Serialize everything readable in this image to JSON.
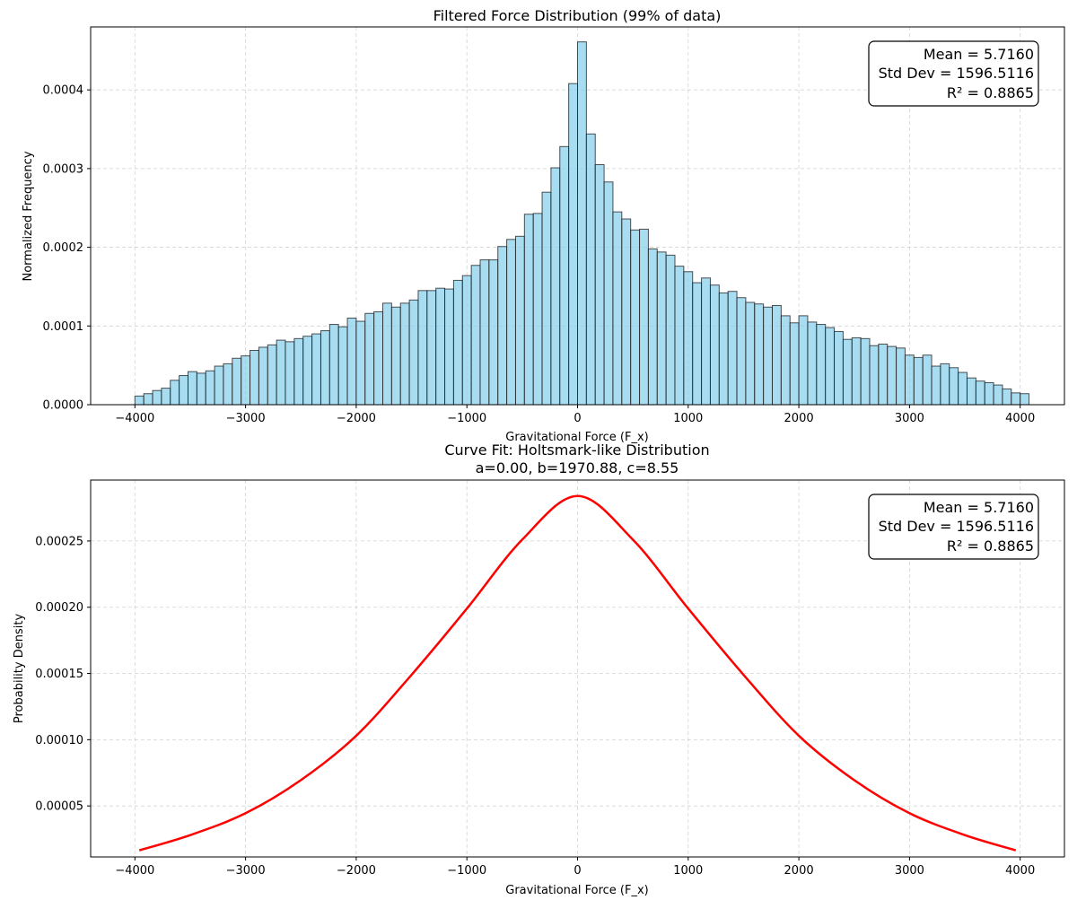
{
  "chart_data": [
    {
      "type": "bar",
      "title": "Filtered Force Distribution (99% of data)",
      "xlabel": "Gravitational Force (F_x)",
      "ylabel": "Normalized Frequency",
      "xlim": [
        -4400,
        4400
      ],
      "ylim": [
        0,
        0.00048
      ],
      "xticks": [
        -4000,
        -3000,
        -2000,
        -1000,
        0,
        1000,
        2000,
        3000,
        4000
      ],
      "xtick_labels": [
        "−4000",
        "−3000",
        "−2000",
        "−1000",
        "0",
        "1000",
        "2000",
        "3000",
        "4000"
      ],
      "yticks": [
        0,
        0.0001,
        0.0002,
        0.0003,
        0.0004
      ],
      "ytick_labels": [
        "0.0000",
        "0.0001",
        "0.0002",
        "0.0003",
        "0.0004"
      ],
      "grid": true,
      "bin_start": -4000,
      "bin_width": 80,
      "values": [
        1.1e-05,
        1.4e-05,
        1.8e-05,
        2.1e-05,
        3.1e-05,
        3.7e-05,
        4.2e-05,
        4e-05,
        4.3e-05,
        4.9e-05,
        5.2e-05,
        5.9e-05,
        6.2e-05,
        6.9e-05,
        7.3e-05,
        7.6e-05,
        8.2e-05,
        8e-05,
        8.4e-05,
        8.7e-05,
        9e-05,
        9.4e-05,
        0.000102,
        9.9e-05,
        0.00011,
        0.000106,
        0.000116,
        0.000118,
        0.000129,
        0.000124,
        0.000129,
        0.000133,
        0.000145,
        0.000145,
        0.000148,
        0.000147,
        0.000158,
        0.000164,
        0.000177,
        0.000184,
        0.000184,
        0.000201,
        0.00021,
        0.000214,
        0.000242,
        0.000243,
        0.00027,
        0.000301,
        0.000328,
        0.000408,
        0.000461,
        0.000344,
        0.000305,
        0.000283,
        0.000245,
        0.000236,
        0.000222,
        0.000223,
        0.000198,
        0.000194,
        0.00019,
        0.000176,
        0.000169,
        0.000155,
        0.000161,
        0.000152,
        0.000142,
        0.000144,
        0.000136,
        0.00013,
        0.000128,
        0.000124,
        0.000126,
        0.000113,
        0.000104,
        0.000113,
        0.000105,
        0.000102,
        9.8e-05,
        9.3e-05,
        8.3e-05,
        8.5e-05,
        8.4e-05,
        7.5e-05,
        7.7e-05,
        7.4e-05,
        7.2e-05,
        6.3e-05,
        6e-05,
        6.3e-05,
        4.9e-05,
        5.2e-05,
        4.7e-05,
        4.1e-05,
        3.4e-05,
        3e-05,
        2.8e-05,
        2.5e-05,
        2e-05,
        1.5e-05,
        1.4e-05
      ],
      "stats": [
        "Mean = 5.7160",
        "Std Dev = 1596.5116",
        "R² = 0.8865"
      ],
      "stats_placement": "top-right"
    },
    {
      "type": "line",
      "title": "Curve Fit: Holtsmark-like Distribution",
      "subtitle": "a=0.00, b=1970.88, c=8.55",
      "xlabel": "Gravitational Force (F_x)",
      "ylabel": "Probability Density",
      "xlim": [
        -4400,
        4400
      ],
      "ylim": [
        1.15e-05,
        0.000296
      ],
      "xticks": [
        -4000,
        -3000,
        -2000,
        -1000,
        0,
        1000,
        2000,
        3000,
        4000
      ],
      "xtick_labels": [
        "−4000",
        "−3000",
        "−2000",
        "−1000",
        "0",
        "1000",
        "2000",
        "3000",
        "4000"
      ],
      "yticks": [
        5e-05,
        0.0001,
        0.00015,
        0.0002,
        0.00025
      ],
      "ytick_labels": [
        "0.00005",
        "0.00010",
        "0.00015",
        "0.00020",
        "0.00025"
      ],
      "grid": true,
      "series": [
        {
          "color": "#ff0000",
          "x": [
            -3960,
            -3500,
            -3000,
            -2500,
            -2000,
            -1500,
            -1000,
            -500,
            0,
            500,
            1000,
            1500,
            2000,
            2500,
            3000,
            3500,
            3960
          ],
          "y": [
            1.65e-05,
            2.8e-05,
            4.45e-05,
            6.95e-05,
            0.000103,
            0.000149,
            0.000199,
            0.000251,
            0.000284,
            0.000251,
            0.000199,
            0.000149,
            0.000103,
            6.95e-05,
            4.45e-05,
            2.8e-05,
            1.65e-05
          ]
        }
      ],
      "stats": [
        "Mean = 5.7160",
        "Std Dev = 1596.5116",
        "R² = 0.8865"
      ],
      "stats_placement": "top-right"
    }
  ]
}
